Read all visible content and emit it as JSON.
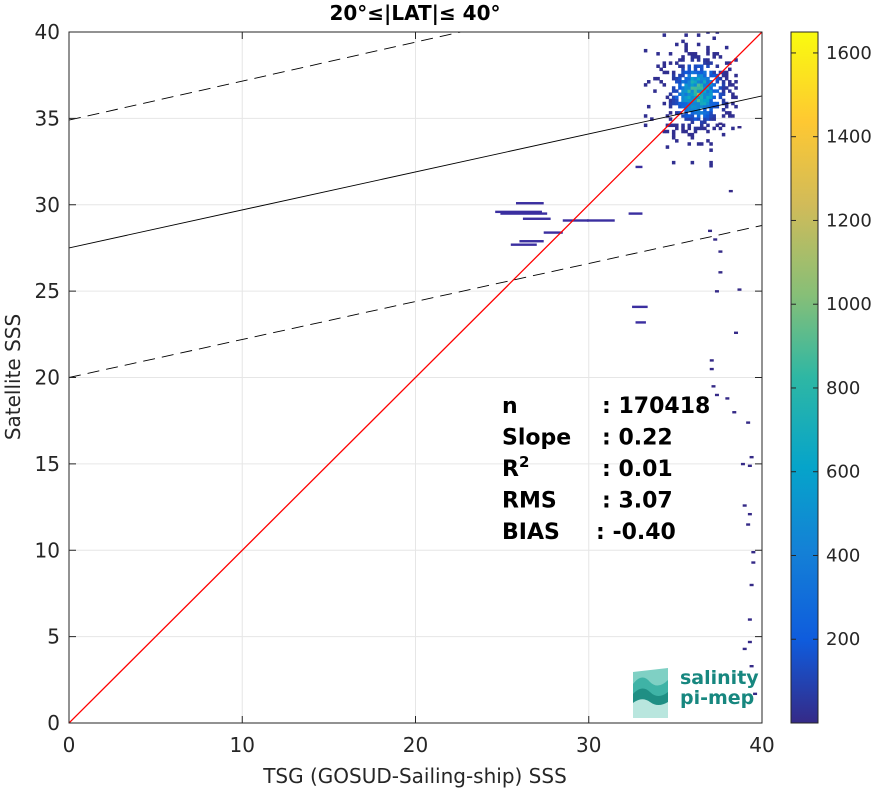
{
  "chart_data": {
    "type": "heatmap",
    "title": "20°≤|LAT|≤ 40°",
    "xlabel": "TSG (GOSUD-Sailing-ship) SSS",
    "ylabel": "Satellite SSS",
    "xlim": [
      0,
      40
    ],
    "ylim": [
      0,
      40
    ],
    "xticks": [
      0,
      10,
      20,
      30,
      40
    ],
    "yticks": [
      0,
      5,
      10,
      15,
      20,
      25,
      30,
      35,
      40
    ],
    "grid": true,
    "colorbar": {
      "range": [
        0,
        1650
      ],
      "ticks": [
        200,
        400,
        600,
        800,
        1000,
        1200,
        1400,
        1600
      ],
      "colormap": "parula"
    },
    "lines": [
      {
        "name": "one-to-one",
        "style": "solid",
        "color": "#ff0000",
        "x": [
          0,
          40
        ],
        "y": [
          0,
          40
        ]
      },
      {
        "name": "regression",
        "style": "solid",
        "color": "#000000",
        "x": [
          0,
          40
        ],
        "y": [
          27.5,
          36.3
        ]
      },
      {
        "name": "regression-upper",
        "style": "dashed",
        "color": "#000000",
        "x": [
          0,
          22.6
        ],
        "y": [
          34.9,
          40
        ]
      },
      {
        "name": "regression-lower",
        "style": "dashed",
        "color": "#000000",
        "x": [
          0,
          40
        ],
        "y": [
          20.0,
          28.8
        ]
      }
    ],
    "stats": [
      {
        "key": "n",
        "value": ": 170418"
      },
      {
        "key": "Slope",
        "value": ": 0.22"
      },
      {
        "key": "R",
        "sup": "2",
        "value": ": 0.01"
      },
      {
        "key": "RMS",
        "value": ": 3.07"
      },
      {
        "key": "BIAS",
        "value": ": -0.40"
      }
    ],
    "cluster": {
      "x_range": [
        33,
        38.5
      ],
      "y_range": [
        32,
        40
      ],
      "peak": [
        36.2,
        36.4
      ],
      "peak_count": 1000
    },
    "segments": [
      {
        "x": [
          24.6,
          27.3
        ],
        "y": 29.6
      },
      {
        "x": [
          24.9,
          27.6
        ],
        "y": 29.5
      },
      {
        "x": [
          25.8,
          27.4
        ],
        "y": 30.1
      },
      {
        "x": [
          26.2,
          27.8
        ],
        "y": 29.2
      },
      {
        "x": [
          27.4,
          28.5
        ],
        "y": 28.4
      },
      {
        "x": [
          26.0,
          27.4
        ],
        "y": 27.9
      },
      {
        "x": [
          25.5,
          27.0
        ],
        "y": 27.7
      },
      {
        "x": [
          28.5,
          30.0
        ],
        "y": 29.1
      },
      {
        "x": [
          29.9,
          31.5
        ],
        "y": 29.1
      },
      {
        "x": [
          32.3,
          33.1
        ],
        "y": 29.5
      },
      {
        "x": [
          32.7,
          33.1
        ],
        "y": 32.2
      },
      {
        "x": [
          32.5,
          33.4
        ],
        "y": 24.1
      },
      {
        "x": [
          32.7,
          33.3
        ],
        "y": 23.2
      }
    ],
    "sparse_points": [
      [
        37.6,
        34.7
      ],
      [
        38.7,
        34.5
      ],
      [
        38.2,
        30.8
      ],
      [
        37.0,
        28.5
      ],
      [
        37.3,
        28.0
      ],
      [
        37.6,
        27.3
      ],
      [
        37.6,
        26.1
      ],
      [
        37.4,
        25.0
      ],
      [
        38.7,
        25.1
      ],
      [
        38.5,
        22.6
      ],
      [
        37.1,
        21.0
      ],
      [
        37.1,
        20.5
      ],
      [
        37.2,
        19.5
      ],
      [
        37.4,
        19.0
      ],
      [
        38.0,
        18.8
      ],
      [
        38.4,
        18.0
      ],
      [
        39.2,
        17.4
      ],
      [
        39.4,
        15.4
      ],
      [
        39.3,
        14.9
      ],
      [
        38.9,
        15.0
      ],
      [
        39.0,
        12.6
      ],
      [
        39.3,
        12.1
      ],
      [
        39.2,
        11.5
      ],
      [
        39.5,
        9.9
      ],
      [
        39.5,
        9.3
      ],
      [
        39.4,
        8.0
      ],
      [
        39.3,
        6.0
      ],
      [
        39.3,
        4.7
      ],
      [
        39.0,
        4.3
      ],
      [
        39.4,
        3.3
      ],
      [
        39.6,
        1.7
      ]
    ]
  },
  "logo": {
    "line1": "salinity",
    "line2": "pi-mep"
  }
}
